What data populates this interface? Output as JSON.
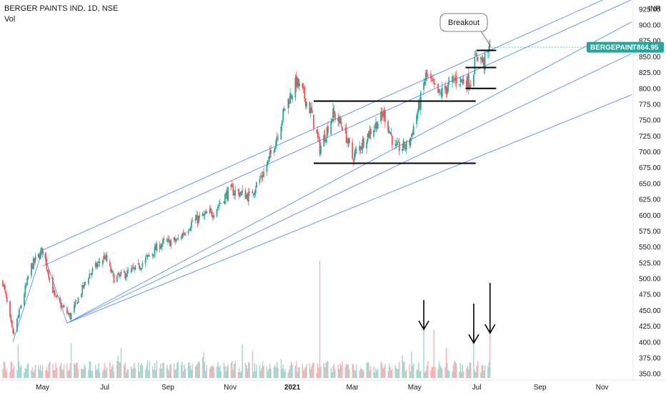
{
  "header": {
    "title": "BERGER PAINTS IND, 1D, NSE",
    "volume_label": "Vol"
  },
  "price_badge": {
    "symbol": "BERGEPAINT",
    "value": "864.95",
    "color": "#26a69a"
  },
  "annotation": {
    "breakout_label": "Breakout"
  },
  "colors": {
    "up": "#26a69a",
    "down": "#ef5350",
    "channel": "#5b8def",
    "level": "#000000"
  },
  "chart_data": {
    "type": "candlestick",
    "currency": "INR",
    "xlabels": [
      "May",
      "Jul",
      "Sep",
      "Nov",
      "2021",
      "Mar",
      "May",
      "Jul",
      "Sep",
      "Nov"
    ],
    "x_bold_label": "2021",
    "xlim": [
      "2020-03-23",
      "2021-11-30"
    ],
    "ylim": [
      340,
      935
    ],
    "y_ticks": [
      350,
      375,
      400,
      425,
      450,
      475,
      500,
      525,
      550,
      575,
      600,
      625,
      650,
      675,
      700,
      725,
      750,
      775,
      800,
      825,
      850,
      875,
      900,
      925
    ],
    "y_tick_labels": [
      "350.00",
      "375.00",
      "400.00",
      "425.00",
      "450.00",
      "475.00",
      "500.00",
      "525.00",
      "550.00",
      "575.00",
      "600.00",
      "625.00",
      "650.00",
      "675.00",
      "700.00",
      "725.00",
      "750.00",
      "775.00",
      "800.00",
      "825.00",
      "850.00",
      "875.00",
      "900.00",
      "925.00"
    ],
    "price_anchors": [
      {
        "date": "2020-03-23",
        "close": 495
      },
      {
        "date": "2020-04-02",
        "close": 410
      },
      {
        "date": "2020-04-20",
        "close": 520
      },
      {
        "date": "2020-05-01",
        "close": 545
      },
      {
        "date": "2020-05-13",
        "close": 470
      },
      {
        "date": "2020-05-28",
        "close": 440
      },
      {
        "date": "2020-06-15",
        "close": 505
      },
      {
        "date": "2020-07-01",
        "close": 535
      },
      {
        "date": "2020-07-10",
        "close": 500
      },
      {
        "date": "2020-08-01",
        "close": 515
      },
      {
        "date": "2020-08-25",
        "close": 555
      },
      {
        "date": "2020-09-10",
        "close": 560
      },
      {
        "date": "2020-09-25",
        "close": 590
      },
      {
        "date": "2020-10-15",
        "close": 605
      },
      {
        "date": "2020-11-01",
        "close": 640
      },
      {
        "date": "2020-11-20",
        "close": 630
      },
      {
        "date": "2020-12-05",
        "close": 670
      },
      {
        "date": "2020-12-15",
        "close": 715
      },
      {
        "date": "2020-12-25",
        "close": 770
      },
      {
        "date": "2021-01-05",
        "close": 810
      },
      {
        "date": "2021-01-12",
        "close": 790
      },
      {
        "date": "2021-01-20",
        "close": 760
      },
      {
        "date": "2021-01-28",
        "close": 705
      },
      {
        "date": "2021-02-10",
        "close": 760
      },
      {
        "date": "2021-02-20",
        "close": 740
      },
      {
        "date": "2021-03-01",
        "close": 690
      },
      {
        "date": "2021-03-15",
        "close": 725
      },
      {
        "date": "2021-04-01",
        "close": 760
      },
      {
        "date": "2021-04-12",
        "close": 705
      },
      {
        "date": "2021-04-25",
        "close": 710
      },
      {
        "date": "2021-05-05",
        "close": 770
      },
      {
        "date": "2021-05-12",
        "close": 820
      },
      {
        "date": "2021-05-25",
        "close": 790
      },
      {
        "date": "2021-06-10",
        "close": 815
      },
      {
        "date": "2021-06-25",
        "close": 810
      },
      {
        "date": "2021-07-01",
        "close": 855
      },
      {
        "date": "2021-07-08",
        "close": 840
      },
      {
        "date": "2021-07-14",
        "close": 864.95
      }
    ],
    "volume_spikes": [
      {
        "date": "2021-01-28",
        "volume": 7.5
      },
      {
        "date": "2021-05-10",
        "volume": 3.4
      },
      {
        "date": "2021-05-20",
        "volume": 3.1
      },
      {
        "date": "2021-06-28",
        "volume": 2.9
      },
      {
        "date": "2021-07-14",
        "volume": 3.0
      }
    ],
    "volume_range": [
      0,
      8
    ],
    "channel_lines": [
      {
        "from": {
          "date": "2020-05-01",
          "price": 545
        },
        "to": {
          "date": "2021-11-30",
          "price": 960
        }
      },
      {
        "from": {
          "date": "2020-05-01",
          "price": 520
        },
        "to": {
          "date": "2021-11-30",
          "price": 940
        }
      },
      {
        "from": {
          "date": "2020-05-25",
          "price": 430
        },
        "to": {
          "date": "2021-11-30",
          "price": 905
        }
      },
      {
        "from": {
          "date": "2020-05-25",
          "price": 430
        },
        "to": {
          "date": "2021-11-30",
          "price": 855
        }
      },
      {
        "from": {
          "date": "2020-05-25",
          "price": 430
        },
        "to": {
          "date": "2021-11-30",
          "price": 790
        }
      }
    ],
    "channel_pivot": {
      "from": {
        "date": "2020-05-01",
        "price": 545
      },
      "to": {
        "date": "2020-05-25",
        "price": 430
      }
    },
    "horizontal_levels": [
      {
        "price": 780,
        "from": "2021-01-22",
        "to": "2021-06-30"
      },
      {
        "price": 682,
        "from": "2021-01-22",
        "to": "2021-06-30"
      },
      {
        "price": 833,
        "from": "2021-06-20",
        "to": "2021-07-20"
      },
      {
        "price": 800,
        "from": "2021-06-20",
        "to": "2021-07-20"
      },
      {
        "price": 860,
        "from": "2021-07-01",
        "to": "2021-07-20"
      }
    ],
    "volume_arrows": [
      "2021-05-10",
      "2021-06-28",
      "2021-07-14"
    ],
    "breakout_point": {
      "date": "2021-07-14",
      "price": 868
    },
    "last_price": 864.95
  }
}
